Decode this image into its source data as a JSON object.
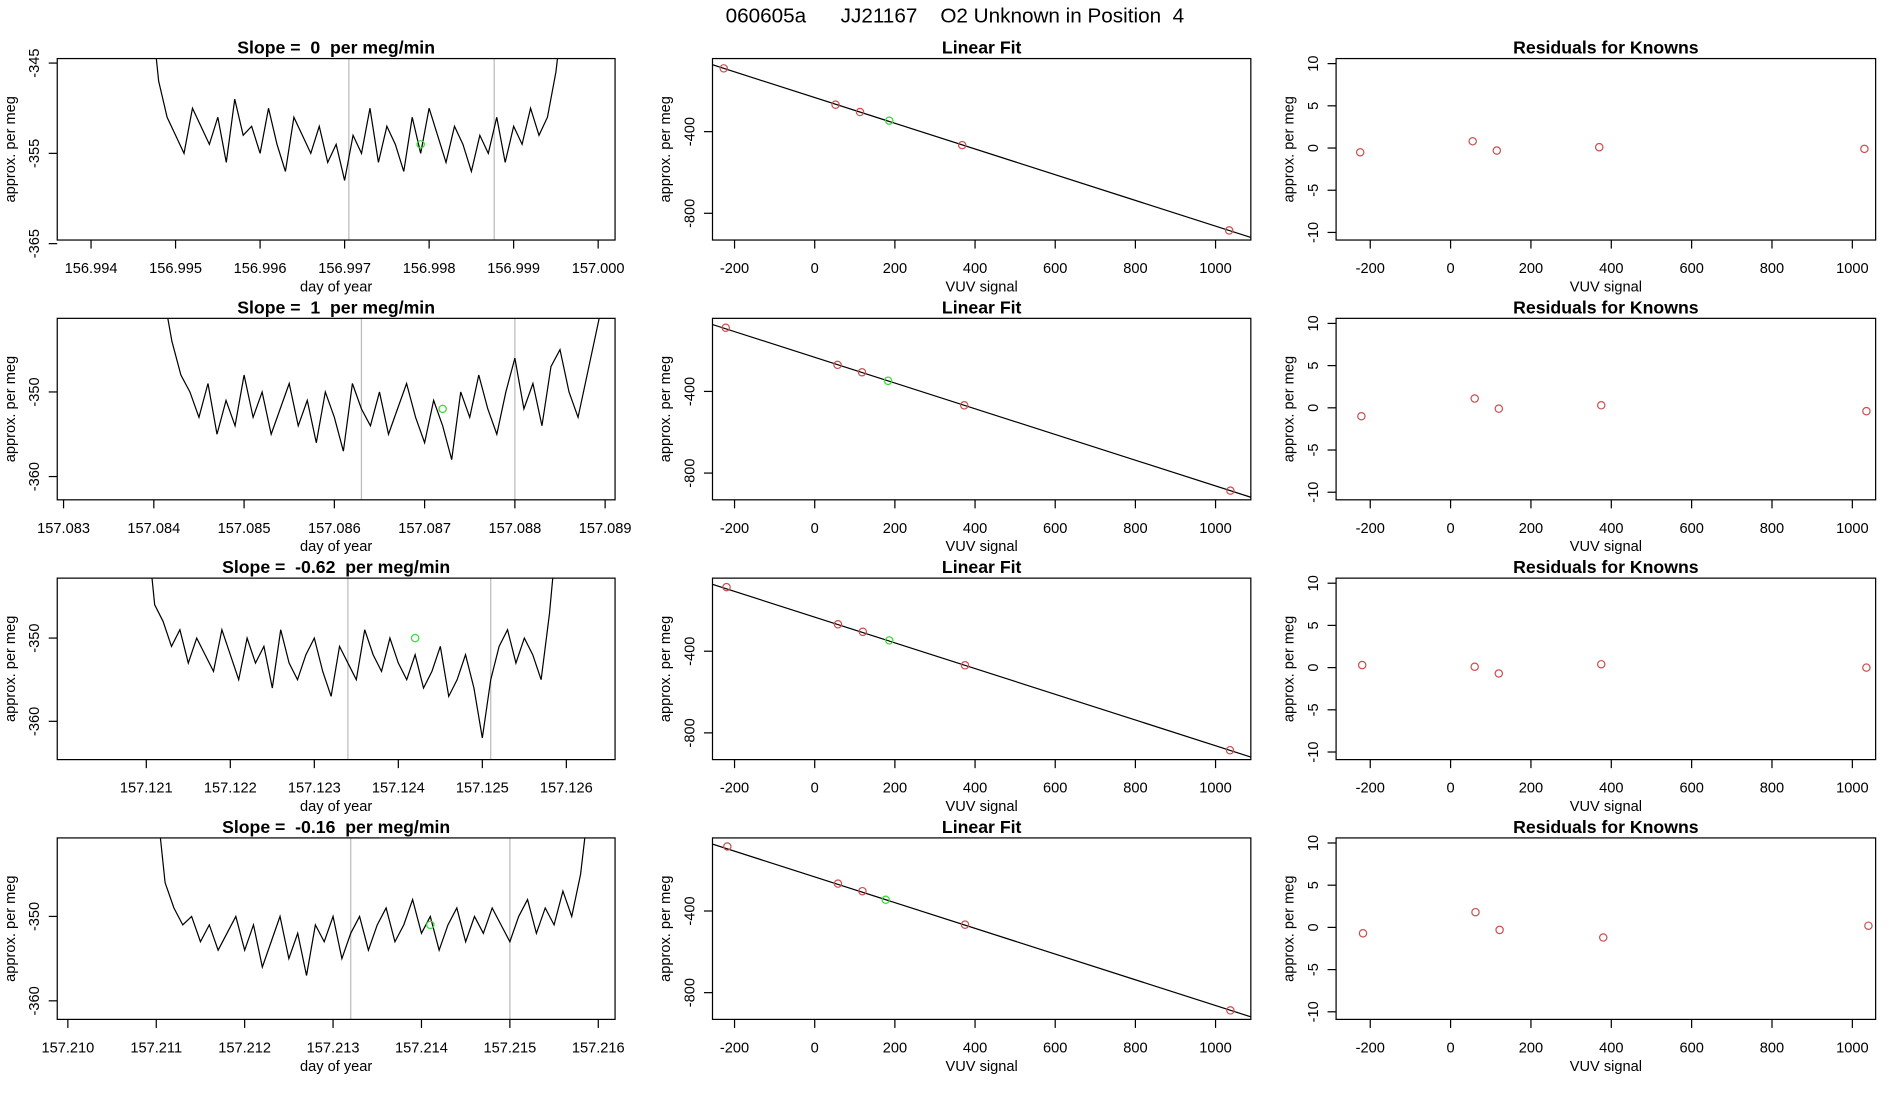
{
  "title": "060605a      JJ21167    O2 Unknown in Position  4",
  "chart_data": [
    {
      "type": "line",
      "title": "Slope =  0  per meg/min",
      "xlabel": "day of year",
      "ylabel": "approx. per meg",
      "color": "#000000",
      "x": [
        156.9947,
        156.9948,
        156.9949,
        156.995,
        156.9951,
        156.9952,
        156.9953,
        156.9954,
        156.9955,
        156.9956,
        156.9957,
        156.9958,
        156.9959,
        156.996,
        156.9961,
        156.9962,
        156.9963,
        156.9964,
        156.9965,
        156.9966,
        156.9967,
        156.9968,
        156.9969,
        156.997,
        156.9971,
        156.9972,
        156.9973,
        156.9974,
        156.9975,
        156.9976,
        156.9977,
        156.9978,
        156.9979,
        156.998,
        156.9981,
        156.9982,
        156.9983,
        156.9984,
        156.9985,
        156.9986,
        156.9987,
        156.9988,
        156.9989,
        156.999,
        156.9991,
        156.9992,
        156.9993,
        156.9994,
        156.9995,
        156.9996
      ],
      "values": [
        -338,
        -347,
        -351,
        -353,
        -355,
        -350,
        -352,
        -354,
        -351,
        -356,
        -349,
        -353,
        -352,
        -355,
        -350,
        -354,
        -357,
        -351,
        -353,
        -355,
        -352,
        -356,
        -354,
        -358,
        -353,
        -355,
        -350,
        -356,
        -352,
        -354,
        -357,
        -351,
        -355,
        -350,
        -353,
        -356,
        -352,
        -354,
        -357,
        -353,
        -355,
        -351,
        -356,
        -352,
        -354,
        -350,
        -353,
        -351,
        -346,
        -338
      ],
      "vlines": [
        156.99705,
        156.99877
      ],
      "highlight": {
        "x": 156.9979,
        "y": -354,
        "color": "#33dd33"
      },
      "xlim": [
        156.9936,
        157.0002
      ],
      "xticks": [
        156.994,
        156.995,
        156.996,
        156.997,
        156.998,
        156.999,
        {
          "value": 157,
          "label": "157.000"
        }
      ],
      "ylim": [
        -364.6,
        -344.5
      ],
      "yticks": [
        -345,
        -355,
        -365
      ]
    },
    {
      "type": "scatter",
      "title": "Linear Fit",
      "xlabel": "VUV signal",
      "ylabel": "approx. per meg",
      "x": [
        -227,
        52,
        113,
        186,
        368,
        1034
      ],
      "values": [
        -90,
        -268,
        -304,
        -346,
        -466,
        -884
      ],
      "colors": [
        "#cd4f4f",
        "#cd4f4f",
        "#cd4f4f",
        "#33dd33",
        "#cd4f4f",
        "#cd4f4f"
      ],
      "fit": {
        "intercept": -233,
        "slope": -0.63
      },
      "xlim": [
        -255,
        1088
      ],
      "xticks": [
        -200,
        0,
        200,
        400,
        600,
        800,
        1000
      ],
      "ylim": [
        -931,
        -42
      ],
      "yticks": [
        -400,
        -800
      ]
    },
    {
      "type": "scatter",
      "title": "Residuals for Knowns",
      "xlabel": "VUV signal",
      "ylabel": "approx. per meg",
      "x": [
        -225,
        55,
        115,
        370,
        1030
      ],
      "values": [
        -0.5,
        0.8,
        -0.3,
        0.1,
        -0.1
      ],
      "colors": [
        "#cd4f4f",
        "#cd4f4f",
        "#cd4f4f",
        "#cd4f4f",
        "#cd4f4f"
      ],
      "xlim": [
        -285,
        1058
      ],
      "xticks": [
        -200,
        0,
        200,
        400,
        600,
        800,
        1000
      ],
      "ylim": [
        -10.9,
        10.6
      ],
      "yticks": [
        10,
        5,
        0,
        -5,
        -10
      ]
    },
    {
      "type": "line",
      "title": "Slope =  1  per meg/min",
      "xlabel": "day of year",
      "ylabel": "approx. per meg",
      "color": "#000000",
      "x": [
        157.0841,
        157.0842,
        157.0843,
        157.0844,
        157.0845,
        157.0846,
        157.0847,
        157.0848,
        157.0849,
        157.085,
        157.0851,
        157.0852,
        157.0853,
        157.0854,
        157.0855,
        157.0856,
        157.0857,
        157.0858,
        157.0859,
        157.086,
        157.0861,
        157.0862,
        157.0863,
        157.0864,
        157.0865,
        157.0866,
        157.0867,
        157.0868,
        157.0869,
        157.087,
        157.0871,
        157.0872,
        157.0873,
        157.0874,
        157.0875,
        157.0876,
        157.0877,
        157.0878,
        157.0879,
        157.088,
        157.0881,
        157.0882,
        157.0883,
        157.0884,
        157.0885,
        157.0886,
        157.0887,
        157.0888,
        157.0889,
        157.089
      ],
      "values": [
        -338,
        -344,
        -348,
        -350,
        -353,
        -349,
        -355,
        -351,
        -354,
        -348,
        -353,
        -350,
        -355,
        -352,
        -349,
        -354,
        -351,
        -356,
        -350,
        -353,
        -357,
        -349,
        -352,
        -354,
        -350,
        -355,
        -352,
        -349,
        -353,
        -356,
        -351,
        -354,
        -358,
        -350,
        -353,
        -348,
        -352,
        -355,
        -350,
        -346,
        -352,
        -349,
        -354,
        -347,
        -345,
        -350,
        -353,
        -348,
        -343,
        -338
      ],
      "vlines": [
        157.0863,
        157.088
      ],
      "highlight": {
        "x": 157.0872,
        "y": -352,
        "color": "#33dd33"
      },
      "xlim": [
        157.08293,
        157.08911
      ],
      "xticks": [
        157.083,
        157.084,
        157.085,
        157.086,
        157.087,
        157.088,
        157.089
      ],
      "ylim": [
        -362.75,
        -341.3
      ],
      "yticks": [
        -350,
        -360
      ]
    },
    {
      "type": "scatter",
      "title": "Linear Fit",
      "xlabel": "VUV signal",
      "ylabel": "approx. per meg",
      "x": [
        -222,
        57,
        118,
        183,
        373,
        1037
      ],
      "values": [
        -88,
        -270,
        -306,
        -348,
        -468,
        -886
      ],
      "colors": [
        "#cd4f4f",
        "#cd4f4f",
        "#cd4f4f",
        "#33dd33",
        "#cd4f4f",
        "#cd4f4f"
      ],
      "fit": {
        "intercept": -233,
        "slope": -0.63
      },
      "xlim": [
        -255,
        1088
      ],
      "xticks": [
        -200,
        0,
        200,
        400,
        600,
        800,
        1000
      ],
      "ylim": [
        -931,
        -42
      ],
      "yticks": [
        -400,
        -800
      ]
    },
    {
      "type": "scatter",
      "title": "Residuals for Knowns",
      "xlabel": "VUV signal",
      "ylabel": "approx. per meg",
      "x": [
        -222,
        60,
        120,
        375,
        1035
      ],
      "values": [
        -1,
        1.1,
        -0.1,
        0.3,
        -0.4
      ],
      "colors": [
        "#cd4f4f",
        "#cd4f4f",
        "#cd4f4f",
        "#cd4f4f",
        "#cd4f4f"
      ],
      "xlim": [
        -285,
        1058
      ],
      "xticks": [
        -200,
        0,
        200,
        400,
        600,
        800,
        1000
      ],
      "ylim": [
        -10.9,
        10.6
      ],
      "yticks": [
        10,
        5,
        0,
        -5,
        -10
      ]
    },
    {
      "type": "line",
      "title": "Slope =  -0.62  per meg/min",
      "xlabel": "day of year",
      "ylabel": "approx. per meg",
      "color": "#000000",
      "x": [
        157.121,
        157.1211,
        157.1212,
        157.1213,
        157.1214,
        157.1215,
        157.1216,
        157.1217,
        157.1218,
        157.1219,
        157.122,
        157.1221,
        157.1222,
        157.1223,
        157.1224,
        157.1225,
        157.1226,
        157.1227,
        157.1228,
        157.1229,
        157.123,
        157.1231,
        157.1232,
        157.1233,
        157.1234,
        157.1235,
        157.1236,
        157.1237,
        157.1238,
        157.1239,
        157.124,
        157.1241,
        157.1242,
        157.1243,
        157.1244,
        157.1245,
        157.1246,
        157.1247,
        157.1248,
        157.1249,
        157.125,
        157.1251,
        157.1252,
        157.1253,
        157.1254,
        157.1255,
        157.1256,
        157.1257,
        157.1258,
        157.1259
      ],
      "values": [
        -336,
        -346,
        -348,
        -351,
        -349,
        -353,
        -350,
        -352,
        -354,
        -349,
        -352,
        -355,
        -350,
        -353,
        -351,
        -356,
        -349,
        -353,
        -355,
        -352,
        -350,
        -354,
        -357,
        -351,
        -353,
        -355,
        -349,
        -352,
        -354,
        -350,
        -353,
        -355,
        -352,
        -356,
        -354,
        -351,
        -357,
        -355,
        -352,
        -356,
        -362,
        -355,
        -351,
        -349,
        -353,
        -350,
        -352,
        -355,
        -347,
        -336
      ],
      "vlines": [
        157.1234,
        157.1251
      ],
      "highlight": {
        "x": 157.1242,
        "y": -350,
        "color": "#33dd33"
      },
      "xlim": [
        157.11994,
        157.12658
      ],
      "xticks": [
        157.121,
        157.122,
        157.123,
        157.124,
        157.125,
        157.126
      ],
      "ylim": [
        -364.6,
        -342.8
      ],
      "yticks": [
        -350,
        -360
      ]
    },
    {
      "type": "scatter",
      "title": "Linear Fit",
      "xlabel": "VUV signal",
      "ylabel": "approx. per meg",
      "x": [
        -220,
        58,
        120,
        186,
        375,
        1036
      ],
      "values": [
        -86,
        -268,
        -305,
        -347,
        -469,
        -885
      ],
      "colors": [
        "#cd4f4f",
        "#cd4f4f",
        "#cd4f4f",
        "#33dd33",
        "#cd4f4f",
        "#cd4f4f"
      ],
      "fit": {
        "intercept": -233,
        "slope": -0.63
      },
      "xlim": [
        -255,
        1088
      ],
      "xticks": [
        -200,
        0,
        200,
        400,
        600,
        800,
        1000
      ],
      "ylim": [
        -931,
        -42
      ],
      "yticks": [
        -400,
        -800
      ]
    },
    {
      "type": "scatter",
      "title": "Residuals for Knowns",
      "xlabel": "VUV signal",
      "ylabel": "approx. per meg",
      "x": [
        -220,
        60,
        120,
        375,
        1035
      ],
      "values": [
        0.3,
        0.1,
        -0.7,
        0.4,
        0
      ],
      "colors": [
        "#cd4f4f",
        "#cd4f4f",
        "#cd4f4f",
        "#cd4f4f",
        "#cd4f4f"
      ],
      "xlim": [
        -285,
        1058
      ],
      "xticks": [
        -200,
        0,
        200,
        400,
        600,
        800,
        1000
      ],
      "ylim": [
        -10.9,
        10.6
      ],
      "yticks": [
        10,
        5,
        0,
        -5,
        -10
      ]
    },
    {
      "type": "line",
      "title": "Slope =  -0.16  per meg/min",
      "xlabel": "day of year",
      "ylabel": "approx. per meg",
      "color": "#000000",
      "x": [
        157.211,
        157.2111,
        157.2112,
        157.2113,
        157.2114,
        157.2115,
        157.2116,
        157.2117,
        157.2118,
        157.2119,
        157.212,
        157.2121,
        157.2122,
        157.2123,
        157.2124,
        157.2125,
        157.2126,
        157.2127,
        157.2128,
        157.2129,
        157.213,
        157.2131,
        157.2132,
        157.2133,
        157.2134,
        157.2135,
        157.2136,
        157.2137,
        157.2138,
        157.2139,
        157.214,
        157.2141,
        157.2142,
        157.2143,
        157.2144,
        157.2145,
        157.2146,
        157.2147,
        157.2148,
        157.2149,
        157.215,
        157.2151,
        157.2152,
        157.2153,
        157.2154,
        157.2155,
        157.2156,
        157.2157,
        157.2158,
        157.2159
      ],
      "values": [
        -336,
        -346,
        -349,
        -351,
        -350,
        -353,
        -351,
        -354,
        -352,
        -350,
        -354,
        -351,
        -356,
        -353,
        -350,
        -355,
        -352,
        -357,
        -351,
        -353,
        -350,
        -355,
        -352,
        -350,
        -354,
        -351,
        -349,
        -353,
        -351,
        -348,
        -352,
        -350,
        -354,
        -351,
        -349,
        -353,
        -350,
        -352,
        -349,
        -351,
        -353,
        -350,
        -348,
        -352,
        -349,
        -351,
        -347,
        -350,
        -345,
        -336
      ],
      "vlines": [
        157.2132,
        157.215
      ],
      "highlight": {
        "x": 157.2141,
        "y": -351,
        "color": "#33dd33"
      },
      "xlim": [
        157.20988,
        157.21619
      ],
      "xticks": [
        {
          "value": 157.21,
          "label": "157.210"
        },
        157.211,
        157.212,
        157.213,
        157.214,
        157.215,
        157.216
      ],
      "ylim": [
        -362.2,
        -340.7
      ],
      "yticks": [
        -350,
        -360
      ]
    },
    {
      "type": "scatter",
      "title": "Linear Fit",
      "xlabel": "VUV signal",
      "ylabel": "approx. per meg",
      "x": [
        -218,
        58,
        119,
        177,
        375,
        1037
      ],
      "values": [
        -84,
        -266,
        -303,
        -345,
        -467,
        -887
      ],
      "colors": [
        "#cd4f4f",
        "#cd4f4f",
        "#cd4f4f",
        "#33dd33",
        "#cd4f4f",
        "#cd4f4f"
      ],
      "fit": {
        "intercept": -233,
        "slope": -0.63
      },
      "xlim": [
        -255,
        1088
      ],
      "xticks": [
        -200,
        0,
        200,
        400,
        600,
        800,
        1000
      ],
      "ylim": [
        -931,
        -42
      ],
      "yticks": [
        -400,
        -800
      ]
    },
    {
      "type": "scatter",
      "title": "Residuals for Knowns",
      "xlabel": "VUV signal",
      "ylabel": "approx. per meg",
      "x": [
        -218,
        62,
        122,
        380,
        1040
      ],
      "values": [
        -0.7,
        1.8,
        -0.3,
        -1.2,
        0.2
      ],
      "colors": [
        "#cd4f4f",
        "#cd4f4f",
        "#cd4f4f",
        "#cd4f4f",
        "#cd4f4f"
      ],
      "xlim": [
        -285,
        1058
      ],
      "xticks": [
        -200,
        0,
        200,
        400,
        600,
        800,
        1000
      ],
      "ylim": [
        -10.9,
        10.6
      ],
      "yticks": [
        10,
        5,
        0,
        -5,
        -10
      ]
    }
  ]
}
